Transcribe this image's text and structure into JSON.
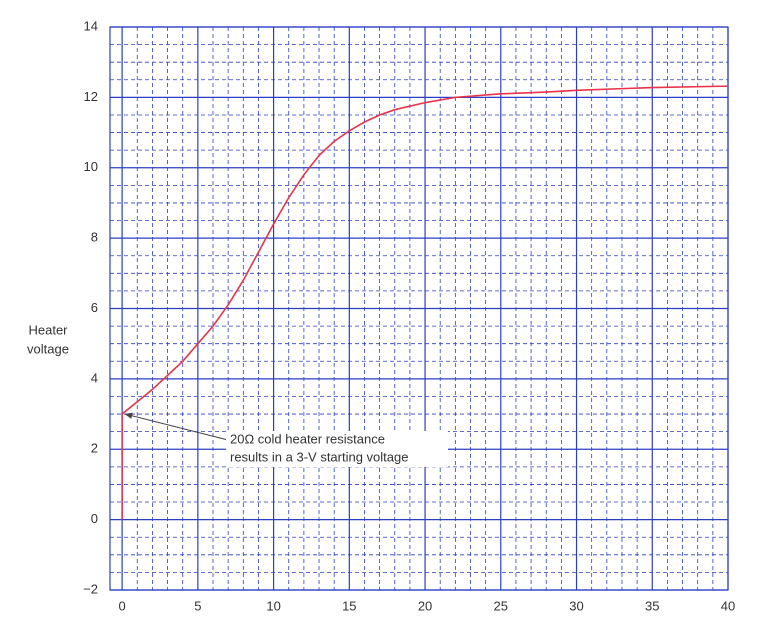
{
  "chart_data": {
    "type": "line",
    "y_label": [
      "Heater",
      "voltage"
    ],
    "annotation": [
      "20Ω cold heater resistance",
      "results in a 3-V starting voltage"
    ],
    "x": [
      0,
      0,
      1,
      2,
      3,
      4,
      5,
      6,
      7,
      8,
      9,
      10,
      11,
      12,
      13,
      14,
      15,
      16,
      17,
      18,
      20,
      22,
      25,
      28,
      30,
      35,
      40
    ],
    "series": [
      {
        "color": "#e8334a",
        "values": [
          0,
          3,
          3.35,
          3.7,
          4.1,
          4.5,
          5.0,
          5.5,
          6.1,
          6.8,
          7.6,
          8.4,
          9.15,
          9.8,
          10.35,
          10.75,
          11.05,
          11.3,
          11.5,
          11.65,
          11.85,
          12.0,
          12.1,
          12.15,
          12.2,
          12.28,
          12.32
        ]
      }
    ],
    "xlim": [
      -0.8,
      40
    ],
    "ylim": [
      -2,
      14
    ],
    "xticks": [
      0,
      5,
      10,
      15,
      20,
      25,
      30,
      35,
      40
    ],
    "yticks": [
      {
        "value": -2,
        "label": "−2"
      },
      0,
      2,
      4,
      6,
      8,
      10,
      12,
      14
    ],
    "grid": true,
    "grid_color": "#2b3fc4"
  }
}
